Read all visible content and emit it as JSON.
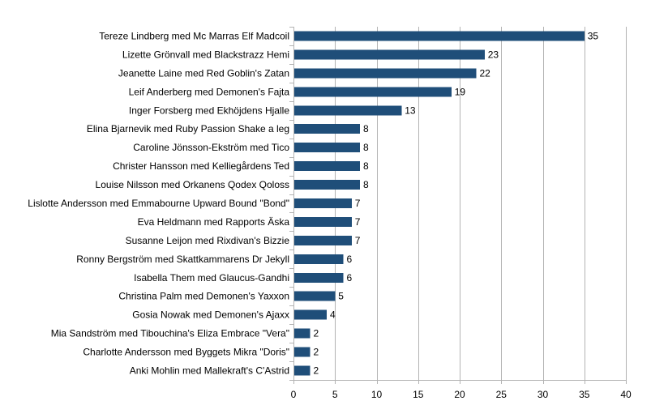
{
  "chart_data": {
    "type": "bar",
    "orientation": "horizontal",
    "title": "",
    "xlabel": "",
    "ylabel": "",
    "xlim": [
      0,
      40
    ],
    "x_ticks": [
      "0",
      "5",
      "10",
      "15",
      "20",
      "25",
      "30",
      "35",
      "40"
    ],
    "grid": true,
    "legend": "none",
    "bar_color": "#1f4e79",
    "categories": [
      "Tereze Lindberg med Mc Marras Elf Madcoil",
      "Lizette Grönvall med Blackstrazz Hemi",
      "Jeanette Laine med Red Goblin's Zatan",
      "Leif Anderberg med Demonen's Fajta",
      "Inger Forsberg med Ekhöjdens Hjalle",
      "Elina Bjarnevik med Ruby Passion Shake a leg",
      "Caroline Jönsson-Ekström med Tico",
      "Christer Hansson med Kelliegårdens Ted",
      "Louise Nilsson med Orkanens Qodex Qoloss",
      "Lislotte Andersson med Emmabourne Upward Bound \"Bond\"",
      "Eva Heldmann med Rapports Äska",
      "Susanne Leijon med Rixdivan's Bizzie",
      "Ronny Bergström med Skattkammarens Dr Jekyll",
      "Isabella Them med Glaucus-Gandhi",
      "Christina Palm med Demonen's Yaxxon",
      "Gosia Nowak med Demonen's Ajaxx",
      "Mia Sandström med Tibouchina's Eliza Embrace \"Vera\"",
      "Charlotte Andersson med Byggets Mikra \"Doris\"",
      "Anki Mohlin med Mallekraft's C'Astrid"
    ],
    "values": [
      35,
      23,
      22,
      19,
      13,
      8,
      8,
      8,
      8,
      7,
      7,
      7,
      6,
      6,
      5,
      4,
      2,
      2,
      2
    ],
    "value_labels": [
      "35",
      "23",
      "22",
      "19",
      "13",
      "8",
      "8",
      "8",
      "8",
      "7",
      "7",
      "7",
      "6",
      "6",
      "5",
      "4",
      "2",
      "2",
      "2"
    ]
  }
}
